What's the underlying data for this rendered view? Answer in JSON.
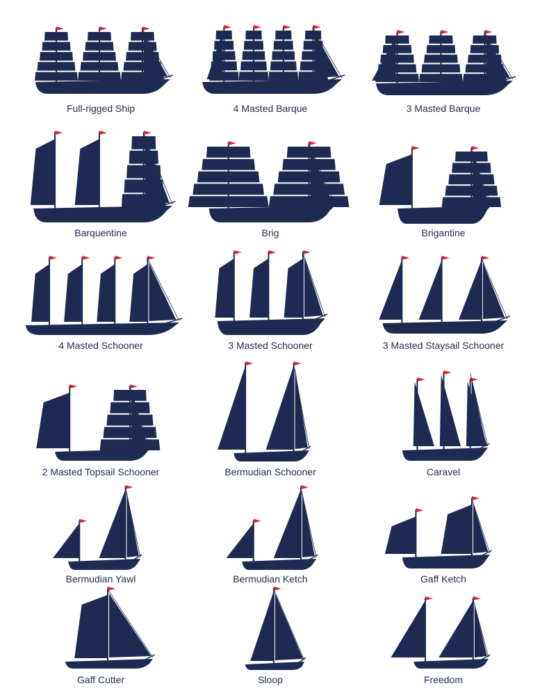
{
  "colors": {
    "hull": "#1f2a52",
    "flag": "#d8243b",
    "label": "#1c2a4f",
    "background": "#ffffff"
  },
  "ships": [
    {
      "id": "full-rigged-ship",
      "name": "Full-rigged Ship",
      "rig": "square",
      "masts": 3
    },
    {
      "id": "4-masted-barque",
      "name": "4 Masted Barque",
      "rig": "barque",
      "masts": 4
    },
    {
      "id": "3-masted-barque",
      "name": "3 Masted Barque",
      "rig": "barque",
      "masts": 3
    },
    {
      "id": "barquentine",
      "name": "Barquentine",
      "rig": "barquentine",
      "masts": 3
    },
    {
      "id": "brig",
      "name": "Brig",
      "rig": "square",
      "masts": 2
    },
    {
      "id": "brigantine",
      "name": "Brigantine",
      "rig": "brigantine",
      "masts": 2
    },
    {
      "id": "4-masted-schooner",
      "name": "4 Masted Schooner",
      "rig": "gaff",
      "masts": 4
    },
    {
      "id": "3-masted-schooner",
      "name": "3 Masted Schooner",
      "rig": "gaff",
      "masts": 3
    },
    {
      "id": "3-masted-staysail-schooner",
      "name": "3 Masted Staysail Schooner",
      "rig": "staysail",
      "masts": 3
    },
    {
      "id": "2-masted-topsail-schooner",
      "name": "2 Masted Topsail Schooner",
      "rig": "topsail",
      "masts": 2
    },
    {
      "id": "bermudian-schooner",
      "name": "Bermudian Schooner",
      "rig": "bermudian",
      "masts": 2
    },
    {
      "id": "caravel",
      "name": "Caravel",
      "rig": "lateen",
      "masts": 3
    },
    {
      "id": "bermudian-yawl",
      "name": "Bermudian Yawl",
      "rig": "bermudian",
      "masts": 2
    },
    {
      "id": "bermudian-ketch",
      "name": "Bermudian Ketch",
      "rig": "bermudian",
      "masts": 2
    },
    {
      "id": "gaff-ketch",
      "name": "Gaff Ketch",
      "rig": "gaff",
      "masts": 2
    },
    {
      "id": "gaff-cutter",
      "name": "Gaff Cutter",
      "rig": "gaff",
      "masts": 1
    },
    {
      "id": "sloop",
      "name": "Sloop",
      "rig": "bermudian",
      "masts": 1
    },
    {
      "id": "freedom",
      "name": "Freedom",
      "rig": "freedom",
      "masts": 2
    }
  ]
}
